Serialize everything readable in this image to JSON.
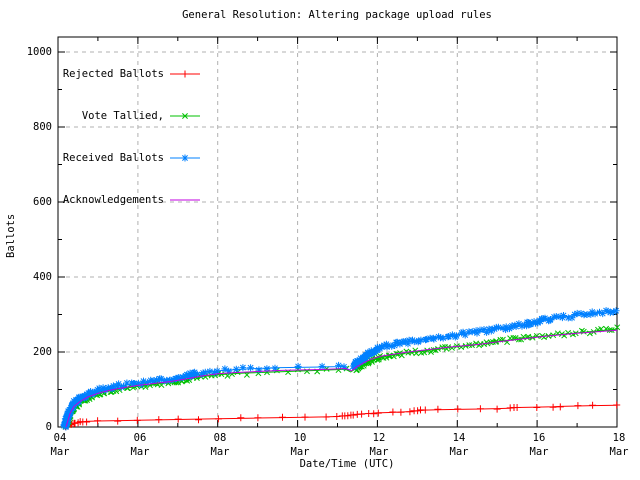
{
  "title": "General Resolution: Altering package upload rules",
  "axes": {
    "xlabel": "Date/Time (UTC)",
    "ylabel": "Ballots"
  },
  "chart_data": {
    "type": "line",
    "title": "General Resolution: Altering package upload rules",
    "xlabel": "Date/Time (UTC)",
    "ylabel": "Ballots",
    "x_unit": "day of March (UTC)",
    "xlim": [
      4,
      18
    ],
    "ylim": [
      0,
      1040
    ],
    "grid": true,
    "grid_color": "#b0b0b0",
    "border_color": "#000000",
    "legend_position": "top-left",
    "x_ticks_major": [
      {
        "day": 4,
        "label": [
          "04",
          "Mar"
        ]
      },
      {
        "day": 6,
        "label": [
          "06",
          "Mar"
        ]
      },
      {
        "day": 8,
        "label": [
          "08",
          "Mar"
        ]
      },
      {
        "day": 10,
        "label": [
          "10",
          "Mar"
        ]
      },
      {
        "day": 12,
        "label": [
          "12",
          "Mar"
        ]
      },
      {
        "day": 14,
        "label": [
          "14",
          "Mar"
        ]
      },
      {
        "day": 16,
        "label": [
          "16",
          "Mar"
        ]
      },
      {
        "day": 18,
        "label": [
          "18",
          "Mar"
        ]
      }
    ],
    "x_ticks_minor": [
      5,
      7,
      9,
      11,
      13,
      15,
      17
    ],
    "y_ticks_major": [
      {
        "value": 0,
        "label": "0"
      },
      {
        "value": 200,
        "label": "200"
      },
      {
        "value": 400,
        "label": "400"
      },
      {
        "value": 600,
        "label": "600"
      },
      {
        "value": 800,
        "label": "800"
      },
      {
        "value": 1000,
        "label": "1000"
      }
    ],
    "y_ticks_minor": [
      100,
      300,
      500,
      700,
      900
    ],
    "series": [
      {
        "name": "Rejected Ballots",
        "color": "#ff0000",
        "marker": "plus",
        "points": [
          [
            4.2,
            1
          ],
          [
            4.28,
            6
          ],
          [
            4.35,
            9
          ],
          [
            4.45,
            11
          ],
          [
            4.55,
            13
          ],
          [
            4.7,
            15
          ],
          [
            5.0,
            16
          ],
          [
            5.5,
            17
          ],
          [
            6.0,
            18
          ],
          [
            6.5,
            19
          ],
          [
            7.0,
            20
          ],
          [
            7.5,
            21
          ],
          [
            8.0,
            22
          ],
          [
            8.6,
            23
          ],
          [
            9.0,
            24
          ],
          [
            9.6,
            25
          ],
          [
            10.2,
            26
          ],
          [
            10.7,
            27
          ],
          [
            11.0,
            28
          ],
          [
            11.2,
            30
          ],
          [
            11.4,
            33
          ],
          [
            11.6,
            35
          ],
          [
            11.8,
            36
          ],
          [
            12.0,
            38
          ],
          [
            12.4,
            39
          ],
          [
            12.8,
            41
          ],
          [
            13.0,
            43
          ],
          [
            13.2,
            45
          ],
          [
            13.5,
            46
          ],
          [
            14.0,
            47
          ],
          [
            14.6,
            48
          ],
          [
            15.0,
            49
          ],
          [
            15.3,
            50
          ],
          [
            15.5,
            52
          ],
          [
            16.0,
            53
          ],
          [
            16.4,
            54
          ],
          [
            16.6,
            55
          ],
          [
            17.0,
            56
          ],
          [
            17.4,
            57
          ],
          [
            18.0,
            58
          ]
        ]
      },
      {
        "name": "Vote Tallied,",
        "color": "#00c000",
        "marker": "cross",
        "points": [
          [
            4.2,
            0
          ],
          [
            4.23,
            10
          ],
          [
            4.27,
            25
          ],
          [
            4.33,
            40
          ],
          [
            4.4,
            52
          ],
          [
            4.5,
            62
          ],
          [
            4.62,
            70
          ],
          [
            4.78,
            79
          ],
          [
            4.95,
            86
          ],
          [
            5.15,
            93
          ],
          [
            5.4,
            99
          ],
          [
            5.7,
            104
          ],
          [
            6.0,
            108
          ],
          [
            6.3,
            112
          ],
          [
            6.6,
            116
          ],
          [
            7.0,
            122
          ],
          [
            7.25,
            128
          ],
          [
            7.5,
            132
          ],
          [
            7.75,
            136
          ],
          [
            8.0,
            139
          ],
          [
            8.35,
            142
          ],
          [
            8.7,
            144
          ],
          [
            9.0,
            145
          ],
          [
            9.5,
            147
          ],
          [
            10.0,
            149
          ],
          [
            10.5,
            151
          ],
          [
            11.0,
            153
          ],
          [
            11.2,
            154
          ],
          [
            11.33,
            147
          ],
          [
            11.5,
            159
          ],
          [
            11.7,
            170
          ],
          [
            11.9,
            179
          ],
          [
            12.1,
            186
          ],
          [
            12.4,
            192
          ],
          [
            12.7,
            197
          ],
          [
            13.0,
            201
          ],
          [
            13.4,
            206
          ],
          [
            13.8,
            212
          ],
          [
            14.2,
            216
          ],
          [
            14.6,
            221
          ],
          [
            15.0,
            228
          ],
          [
            15.4,
            233
          ],
          [
            15.8,
            239
          ],
          [
            16.2,
            243
          ],
          [
            16.6,
            247
          ],
          [
            17.0,
            251
          ],
          [
            17.5,
            256
          ],
          [
            18.0,
            261
          ]
        ]
      },
      {
        "name": "Received Ballots",
        "color": "#0080ff",
        "marker": "star",
        "points": [
          [
            4.17,
            0
          ],
          [
            4.19,
            5
          ],
          [
            4.22,
            20
          ],
          [
            4.26,
            35
          ],
          [
            4.31,
            48
          ],
          [
            4.38,
            60
          ],
          [
            4.45,
            68
          ],
          [
            4.55,
            76
          ],
          [
            4.7,
            85
          ],
          [
            4.85,
            92
          ],
          [
            5.0,
            98
          ],
          [
            5.2,
            104
          ],
          [
            5.45,
            109
          ],
          [
            5.75,
            113
          ],
          [
            6.0,
            117
          ],
          [
            6.3,
            121
          ],
          [
            6.6,
            125
          ],
          [
            7.0,
            131
          ],
          [
            7.2,
            136
          ],
          [
            7.45,
            143
          ],
          [
            7.7,
            147
          ],
          [
            8.0,
            150
          ],
          [
            8.3,
            152
          ],
          [
            8.6,
            154
          ],
          [
            9.0,
            156
          ],
          [
            9.4,
            158
          ],
          [
            10.0,
            159
          ],
          [
            10.6,
            160
          ],
          [
            11.0,
            161
          ],
          [
            11.15,
            162
          ],
          [
            11.3,
            152
          ],
          [
            11.45,
            168
          ],
          [
            11.65,
            185
          ],
          [
            11.85,
            200
          ],
          [
            12.0,
            210
          ],
          [
            12.2,
            216
          ],
          [
            12.45,
            221
          ],
          [
            12.7,
            226
          ],
          [
            13.0,
            231
          ],
          [
            13.3,
            236
          ],
          [
            13.6,
            240
          ],
          [
            14.0,
            246
          ],
          [
            14.3,
            250
          ],
          [
            14.6,
            254
          ],
          [
            15.0,
            261
          ],
          [
            15.3,
            266
          ],
          [
            15.7,
            274
          ],
          [
            16.0,
            281
          ],
          [
            16.3,
            288
          ],
          [
            16.6,
            293
          ],
          [
            17.0,
            298
          ],
          [
            17.4,
            303
          ],
          [
            17.7,
            307
          ],
          [
            18.0,
            311
          ]
        ]
      },
      {
        "name": "Acknowledgements",
        "color": "#c000e0",
        "marker": "none",
        "points": [
          [
            4.2,
            0
          ],
          [
            4.25,
            18
          ],
          [
            4.3,
            36
          ],
          [
            4.4,
            55
          ],
          [
            4.55,
            68
          ],
          [
            4.75,
            80
          ],
          [
            5.0,
            90
          ],
          [
            5.3,
            98
          ],
          [
            5.6,
            104
          ],
          [
            6.0,
            111
          ],
          [
            6.4,
            116
          ],
          [
            6.8,
            121
          ],
          [
            7.2,
            128
          ],
          [
            7.6,
            136
          ],
          [
            8.0,
            142
          ],
          [
            8.4,
            145
          ],
          [
            8.8,
            147
          ],
          [
            9.2,
            149
          ],
          [
            9.6,
            151
          ],
          [
            10.0,
            152
          ],
          [
            10.5,
            153
          ],
          [
            11.0,
            155
          ],
          [
            11.2,
            156
          ],
          [
            11.35,
            150
          ],
          [
            11.5,
            162
          ],
          [
            11.7,
            174
          ],
          [
            11.9,
            183
          ],
          [
            12.1,
            189
          ],
          [
            12.4,
            194
          ],
          [
            12.7,
            199
          ],
          [
            13.0,
            203
          ],
          [
            13.4,
            208
          ],
          [
            13.8,
            213
          ],
          [
            14.2,
            217
          ],
          [
            14.6,
            221
          ],
          [
            15.0,
            227
          ],
          [
            15.4,
            232
          ],
          [
            15.8,
            237
          ],
          [
            16.2,
            242
          ],
          [
            16.6,
            246
          ],
          [
            17.0,
            250
          ],
          [
            17.5,
            254
          ],
          [
            18.0,
            258
          ]
        ]
      }
    ]
  }
}
